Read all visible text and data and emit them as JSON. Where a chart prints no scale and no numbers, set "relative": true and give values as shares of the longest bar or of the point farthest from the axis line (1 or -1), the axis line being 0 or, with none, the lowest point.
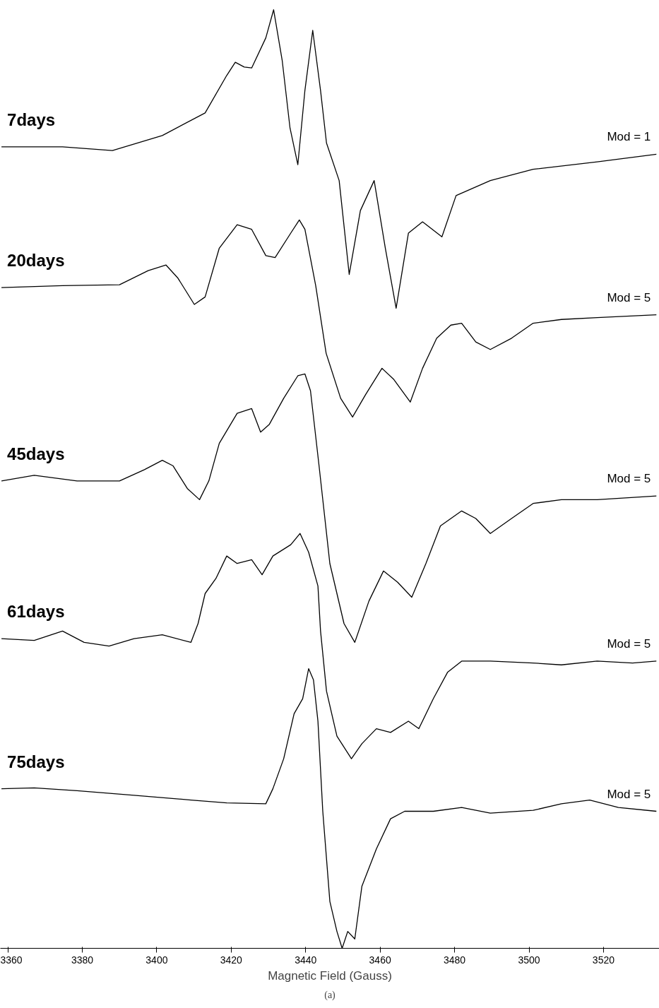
{
  "chart_data": {
    "type": "line",
    "relative": true,
    "xlabel": "Magnetic Field (Gauss)",
    "xlim": [
      3358,
      3535
    ],
    "xticks": [
      3360,
      3380,
      3400,
      3420,
      3440,
      3460,
      3480,
      3500,
      3520
    ],
    "tick_labels": "x",
    "grid": false,
    "series": [
      {
        "name": "7days",
        "color": "#000000",
        "x": [
          3358.3,
          3374.7,
          3388.1,
          3401.5,
          3413.0,
          3418.8,
          3421.1,
          3423.5,
          3425.5,
          3429.3,
          3431.4,
          3433.7,
          3435.8,
          3437.9,
          3439.8,
          3441.9,
          3444.0,
          3445.6,
          3449.0,
          3451.7,
          3454.7,
          3458.4,
          3461.4,
          3464.3,
          3467.6,
          3471.4,
          3476.6,
          3480.4,
          3489.6,
          3501.1,
          3518.3,
          3534.2
        ],
        "values": [
          0.854,
          0.854,
          0.85,
          0.866,
          0.89,
          0.93,
          0.944,
          0.939,
          0.938,
          0.97,
          1.0,
          0.946,
          0.874,
          0.835,
          0.914,
          0.978,
          0.914,
          0.858,
          0.818,
          0.718,
          0.786,
          0.818,
          0.746,
          0.682,
          0.762,
          0.774,
          0.758,
          0.802,
          0.818,
          0.83,
          0.838,
          0.846
        ]
      },
      {
        "name": "20days",
        "color": "#000000",
        "x": [
          3358.3,
          3374.7,
          3390.0,
          3397.7,
          3402.5,
          3405.7,
          3410.1,
          3413.0,
          3416.8,
          3421.6,
          3425.5,
          3429.3,
          3431.8,
          3436.0,
          3438.3,
          3439.8,
          3442.7,
          3445.5,
          3449.4,
          3452.6,
          3456.1,
          3460.5,
          3463.7,
          3468.1,
          3471.4,
          3475.2,
          3479.0,
          3481.9,
          3485.7,
          3489.6,
          3495.3,
          3501.1,
          3508.7,
          3518.3,
          3534.2
        ],
        "values": [
          0.704,
          0.706,
          0.707,
          0.722,
          0.728,
          0.714,
          0.686,
          0.694,
          0.746,
          0.771,
          0.766,
          0.738,
          0.736,
          0.762,
          0.776,
          0.766,
          0.706,
          0.634,
          0.586,
          0.566,
          0.59,
          0.618,
          0.606,
          0.582,
          0.618,
          0.65,
          0.664,
          0.666,
          0.646,
          0.638,
          0.65,
          0.666,
          0.67,
          0.672,
          0.675
        ]
      },
      {
        "name": "45days",
        "color": "#000000",
        "x": [
          3358.3,
          3367.1,
          3378.6,
          3390.0,
          3396.7,
          3401.5,
          3404.4,
          3408.2,
          3411.5,
          3414.0,
          3416.8,
          3421.6,
          3425.5,
          3427.9,
          3430.2,
          3434.1,
          3437.9,
          3439.8,
          3441.3,
          3443.6,
          3446.5,
          3450.3,
          3453.2,
          3457.0,
          3460.9,
          3464.7,
          3468.5,
          3472.3,
          3476.2,
          3481.9,
          3485.7,
          3489.6,
          3495.3,
          3501.1,
          3508.7,
          3518.3,
          3534.2
        ],
        "values": [
          0.498,
          0.504,
          0.498,
          0.498,
          0.51,
          0.52,
          0.514,
          0.49,
          0.478,
          0.498,
          0.538,
          0.57,
          0.575,
          0.55,
          0.558,
          0.586,
          0.61,
          0.612,
          0.594,
          0.514,
          0.41,
          0.346,
          0.326,
          0.37,
          0.402,
          0.39,
          0.374,
          0.41,
          0.45,
          0.466,
          0.458,
          0.442,
          0.458,
          0.474,
          0.478,
          0.478,
          0.482
        ]
      },
      {
        "name": "61days",
        "color": "#000000",
        "x": [
          3358.3,
          3367.1,
          3374.7,
          3380.5,
          3387.2,
          3393.9,
          3401.5,
          3409.2,
          3411.1,
          3413.0,
          3415.9,
          3418.8,
          3421.6,
          3425.5,
          3428.3,
          3431.2,
          3436.0,
          3438.5,
          3440.8,
          3443.3,
          3444.0,
          3445.6,
          3448.4,
          3452.3,
          3455.1,
          3459.0,
          3462.8,
          3467.6,
          3470.4,
          3474.3,
          3478.1,
          3481.9,
          3489.6,
          3501.1,
          3508.7,
          3518.3,
          3527.8,
          3534.2
        ],
        "values": [
          0.33,
          0.328,
          0.338,
          0.326,
          0.322,
          0.33,
          0.334,
          0.326,
          0.346,
          0.378,
          0.394,
          0.418,
          0.41,
          0.414,
          0.398,
          0.418,
          0.43,
          0.442,
          0.422,
          0.386,
          0.338,
          0.274,
          0.226,
          0.202,
          0.218,
          0.234,
          0.23,
          0.242,
          0.234,
          0.266,
          0.294,
          0.306,
          0.306,
          0.304,
          0.302,
          0.306,
          0.304,
          0.306
        ]
      },
      {
        "name": "75days",
        "color": "#000000",
        "x": [
          3358.3,
          3367.1,
          3378.6,
          3393.9,
          3409.2,
          3418.8,
          3429.3,
          3431.2,
          3434.1,
          3436.9,
          3439.2,
          3440.8,
          3442.1,
          3443.3,
          3444.6,
          3446.5,
          3448.4,
          3449.8,
          3451.3,
          3453.2,
          3455.1,
          3459.0,
          3462.8,
          3466.6,
          3474.3,
          3481.9,
          3489.6,
          3501.1,
          3508.7,
          3516.3,
          3524.0,
          3534.2
        ],
        "values": [
          0.17,
          0.171,
          0.168,
          0.163,
          0.158,
          0.155,
          0.154,
          0.17,
          0.202,
          0.25,
          0.266,
          0.298,
          0.286,
          0.242,
          0.146,
          0.05,
          0.018,
          0.0,
          0.018,
          0.01,
          0.066,
          0.106,
          0.138,
          0.146,
          0.146,
          0.15,
          0.144,
          0.147,
          0.154,
          0.158,
          0.15,
          0.146
        ]
      }
    ],
    "annotations": [
      "Mod = 1",
      "Mod = 5",
      "Mod = 5",
      "Mod = 5",
      "Mod = 5",
      "(a)"
    ]
  }
}
